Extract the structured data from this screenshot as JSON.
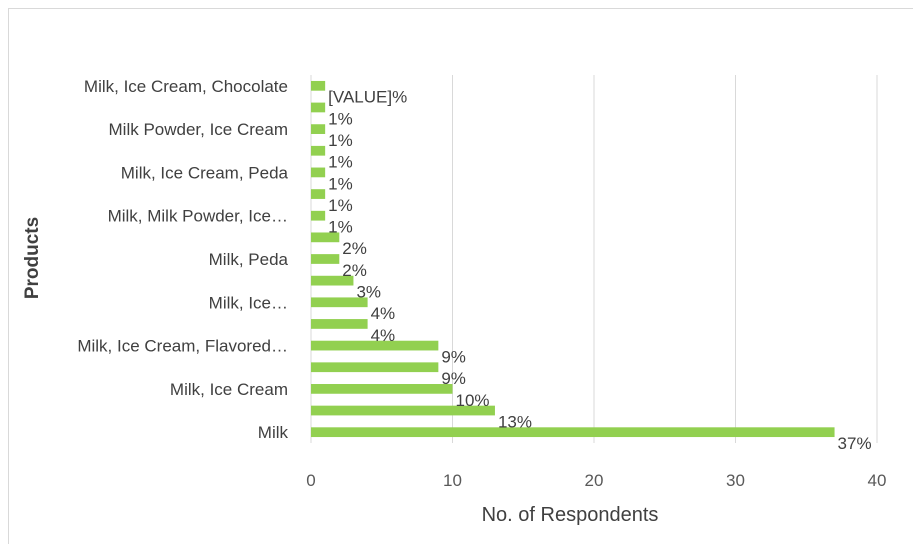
{
  "chart_data": {
    "type": "bar",
    "orientation": "horizontal",
    "xlabel": "No. of Respondents",
    "ylabel": "Products",
    "xlim": [
      0,
      40
    ],
    "xticks": [
      0,
      10,
      20,
      30,
      40
    ],
    "grid": true,
    "bar_color": "#92d050",
    "categories": [
      "Milk",
      "",
      "Milk, Ice Cream",
      "",
      "Milk, Ice Cream, Flavored…",
      "",
      "Milk, Ice…",
      "",
      "Milk, Peda",
      "",
      "Milk, Milk Powder, Ice…",
      "",
      "Milk, Ice Cream, Peda",
      "",
      "Milk Powder, Ice Cream",
      "",
      "Milk, Ice Cream, Chocolate"
    ],
    "values": [
      37,
      13,
      10,
      9,
      9,
      4,
      4,
      3,
      2,
      2,
      1,
      1,
      1,
      1,
      1,
      1,
      1
    ],
    "data_labels": [
      "37%",
      "13%",
      "10%",
      "9%",
      "9%",
      "4%",
      "4%",
      "3%",
      "2%",
      "2%",
      "1%",
      "1%",
      "1%",
      "1%",
      "1%",
      "1%",
      "[VALUE]%"
    ]
  }
}
